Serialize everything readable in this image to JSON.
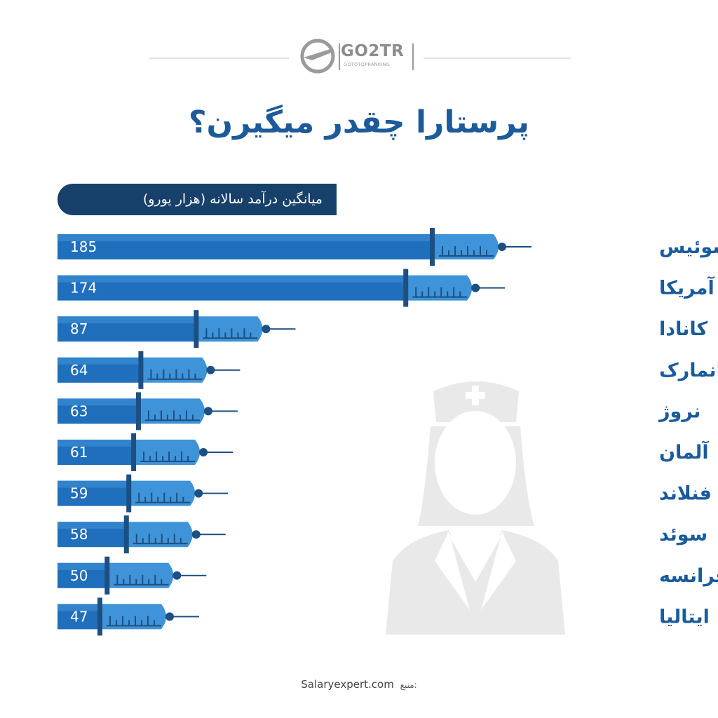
{
  "header": {
    "logo_text": "GO2TR",
    "logo_sub": "GOTOTOPRANKING",
    "title": "پرستارا چقدر میگیرن؟"
  },
  "chart_data": {
    "type": "bar",
    "orientation": "horizontal",
    "title": "پرستارا چقدر میگیرن؟",
    "subtitle": "میانگین درآمد سالانه (هزار یورو)",
    "categories": [
      "سوئیس",
      "آمریکا",
      "کانادا",
      "دانمارک",
      "نروژ",
      "آلمان",
      "فنلاند",
      "سوئد",
      "فرانسه",
      "ایتالیا"
    ],
    "values": [
      185,
      174,
      87,
      64,
      63,
      61,
      59,
      58,
      50,
      47
    ],
    "data_labels": true,
    "legend": "none",
    "grid": false,
    "colors": {
      "bar": "#1f6fbd",
      "bar_light": "#3f93d8",
      "needle": "#1d4f82",
      "label": "#1a5b9c",
      "pill": "#17406a"
    }
  },
  "footer": {
    "source_label": "منبع:",
    "source_value": "Salaryexpert.com"
  }
}
